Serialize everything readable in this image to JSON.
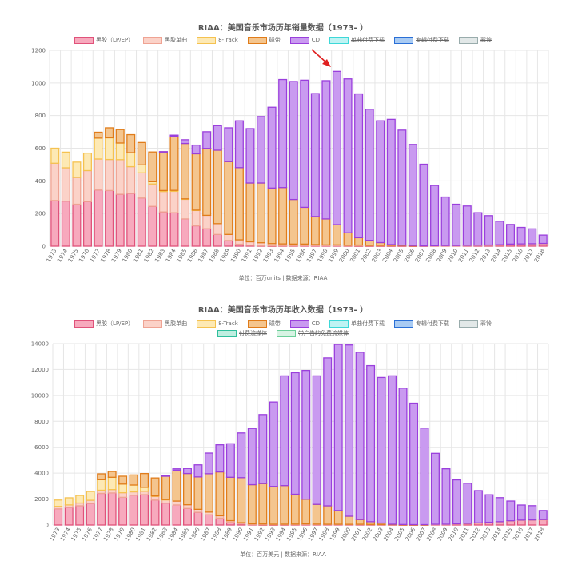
{
  "chart_data": [
    {
      "type": "bar",
      "stacked": true,
      "title": "RIAA：美国音乐市场历年销量数据（1973- ）",
      "subtitle": "单位：百万units | 数据来源：RIAA",
      "ylim": [
        0,
        1200
      ],
      "yticks": [
        0,
        200,
        400,
        600,
        800,
        1000,
        1200
      ],
      "categories": [
        "1973",
        "1974",
        "1975",
        "1976",
        "1977",
        "1978",
        "1979",
        "1980",
        "1981",
        "1982",
        "1983",
        "1984",
        "1985",
        "1986",
        "1987",
        "1988",
        "1989",
        "1990",
        "1991",
        "1992",
        "1993",
        "1994",
        "1995",
        "1996",
        "1997",
        "1998",
        "1999",
        "2000",
        "2001",
        "2002",
        "2003",
        "2004",
        "2005",
        "2006",
        "2007",
        "2008",
        "2009",
        "2010",
        "2011",
        "2012",
        "2013",
        "2014",
        "2015",
        "2016",
        "2017",
        "2018"
      ],
      "legend": [
        {
          "name": "黑胶（LP/EP）",
          "hidden": false
        },
        {
          "name": "黑胶单曲",
          "hidden": false
        },
        {
          "name": "8-Track",
          "hidden": false
        },
        {
          "name": "磁带",
          "hidden": false
        },
        {
          "name": "CD",
          "hidden": false
        },
        {
          "name": "单曲付费下载",
          "hidden": true
        },
        {
          "name": "专辑付费下载",
          "hidden": true
        },
        {
          "name": "彩铃",
          "hidden": true
        }
      ],
      "series": [
        {
          "name": "黑胶（LP/EP）",
          "values": [
            280,
            276,
            257,
            273,
            344,
            341,
            318,
            323,
            295,
            244,
            210,
            205,
            167,
            125,
            107,
            72,
            35,
            12,
            5,
            2,
            1,
            2,
            2,
            3,
            3,
            3,
            3,
            2,
            1,
            1,
            1,
            1,
            1,
            1,
            1,
            2,
            3,
            3,
            4,
            5,
            6,
            8,
            12,
            13,
            14,
            16
          ]
        },
        {
          "name": "黑胶单曲",
          "values": [
            228,
            204,
            164,
            190,
            190,
            190,
            212,
            164,
            154,
            137,
            125,
            131,
            120,
            94,
            82,
            66,
            37,
            27,
            22,
            19,
            15,
            12,
            11,
            10,
            7,
            5,
            5,
            4,
            6,
            4,
            4,
            4,
            3,
            2,
            1,
            1,
            1,
            1,
            1,
            1,
            1,
            1,
            1,
            1,
            1,
            1
          ]
        },
        {
          "name": "8-Track",
          "values": [
            92,
            96,
            94,
            107,
            128,
            133,
            102,
            86,
            49,
            14,
            6,
            6,
            3,
            2,
            0,
            0,
            0,
            0,
            0,
            0,
            0,
            0,
            0,
            0,
            0,
            0,
            0,
            0,
            0,
            0,
            0,
            0,
            0,
            0,
            0,
            0,
            0,
            0,
            0,
            0,
            0,
            0,
            0,
            0,
            0,
            0
          ]
        },
        {
          "name": "磁带",
          "values": [
            0,
            0,
            0,
            0,
            36,
            61,
            82,
            110,
            137,
            182,
            237,
            332,
            339,
            345,
            410,
            450,
            446,
            442,
            360,
            366,
            340,
            345,
            273,
            225,
            172,
            159,
            124,
            76,
            45,
            31,
            17,
            5,
            2,
            1,
            0,
            0,
            0,
            0,
            0,
            0,
            0,
            0,
            0,
            0,
            0,
            0
          ]
        },
        {
          "name": "CD",
          "values": [
            0,
            0,
            0,
            0,
            0,
            0,
            0,
            0,
            0,
            0,
            1,
            6,
            23,
            53,
            102,
            150,
            207,
            287,
            333,
            407,
            495,
            662,
            723,
            779,
            753,
            847,
            939,
            943,
            881,
            803,
            746,
            767,
            705,
            619,
            500,
            369,
            297,
            253,
            241,
            199,
            180,
            144,
            120,
            101,
            91,
            51
          ]
        }
      ],
      "annotation": "red arrow pointing to 1999 CD peak"
    },
    {
      "type": "bar",
      "stacked": true,
      "title": "RIAA：美国音乐市场历年收入数据（1973- ）",
      "subtitle": "单位：百万美元 | 数据来源：RIAA",
      "ylim": [
        0,
        14000
      ],
      "yticks": [
        0,
        2000,
        4000,
        6000,
        8000,
        10000,
        12000,
        14000
      ],
      "categories": [
        "1973",
        "1974",
        "1975",
        "1976",
        "1977",
        "1978",
        "1979",
        "1980",
        "1981",
        "1982",
        "1983",
        "1984",
        "1985",
        "1986",
        "1987",
        "1988",
        "1989",
        "1990",
        "1991",
        "1992",
        "1993",
        "1994",
        "1995",
        "1996",
        "1997",
        "1998",
        "1999",
        "2000",
        "2001",
        "2002",
        "2003",
        "2004",
        "2005",
        "2006",
        "2007",
        "2008",
        "2009",
        "2010",
        "2011",
        "2012",
        "2013",
        "2014",
        "2015",
        "2016",
        "2017",
        "2018"
      ],
      "legend": [
        {
          "name": "黑胶（LP/EP）",
          "hidden": false
        },
        {
          "name": "黑胶单曲",
          "hidden": false
        },
        {
          "name": "8-Track",
          "hidden": false
        },
        {
          "name": "磁带",
          "hidden": false
        },
        {
          "name": "CD",
          "hidden": false
        },
        {
          "name": "单曲付费下载",
          "hidden": true
        },
        {
          "name": "专辑付费下载",
          "hidden": true
        },
        {
          "name": "彩铃",
          "hidden": true
        },
        {
          "name": "付费流媒体",
          "hidden": true
        },
        {
          "name": "带广告的免费流媒体",
          "hidden": true
        }
      ],
      "series": [
        {
          "name": "黑胶（LP/EP）",
          "values": [
            1246,
            1356,
            1485,
            1663,
            2440,
            2474,
            2136,
            2290,
            2342,
            1925,
            1690,
            1548,
            1281,
            983,
            793,
            532,
            220,
            86,
            29,
            14,
            11,
            17,
            25,
            37,
            33,
            34,
            32,
            28,
            27,
            21,
            21,
            19,
            14,
            16,
            23,
            57,
            60,
            89,
            119,
            163,
            206,
            252,
            325,
            379,
            390,
            419
          ]
        },
        {
          "name": "黑胶单曲",
          "values": [
            190,
            194,
            211,
            245,
            245,
            260,
            354,
            269,
            256,
            283,
            269,
            298,
            281,
            228,
            203,
            180,
            116,
            94,
            63,
            66,
            51,
            47,
            46,
            48,
            36,
            26,
            28,
            26,
            31,
            24,
            22,
            19,
            13,
            11,
            4,
            3,
            3,
            2,
            4,
            3,
            4,
            3,
            3,
            2,
            2,
            2
          ]
        },
        {
          "name": "8-Track",
          "values": [
            489,
            549,
            583,
            678,
            811,
            948,
            669,
            526,
            309,
            36,
            4,
            0,
            0,
            0,
            0,
            0,
            0,
            0,
            0,
            0,
            0,
            0,
            0,
            0,
            0,
            0,
            0,
            0,
            0,
            0,
            0,
            0,
            0,
            0,
            0,
            0,
            0,
            0,
            0,
            0,
            0,
            0,
            0,
            0,
            0,
            0
          ]
        },
        {
          "name": "磁带",
          "values": [
            0,
            0,
            0,
            0,
            450,
            449,
            604,
            776,
            1062,
            1385,
            1810,
            2384,
            2411,
            2500,
            2960,
            3385,
            3346,
            3472,
            3019,
            3116,
            2916,
            2977,
            2304,
            1905,
            1523,
            1420,
            1062,
            626,
            363,
            210,
            108,
            24,
            13,
            4,
            3,
            0,
            0,
            0,
            0,
            0,
            0,
            0,
            0,
            0,
            0,
            0
          ]
        },
        {
          "name": "CD",
          "values": [
            0,
            0,
            0,
            0,
            0,
            0,
            0,
            0,
            0,
            0,
            17,
            103,
            390,
            930,
            1594,
            2090,
            2588,
            3452,
            4338,
            5326,
            6511,
            8465,
            9377,
            9935,
            9915,
            11416,
            12816,
            13215,
            12909,
            12044,
            11233,
            11447,
            10520,
            9373,
            7452,
            5471,
            4275,
            3389,
            3100,
            2486,
            2123,
            1855,
            1521,
            1160,
            1099,
            698
          ]
        }
      ]
    }
  ]
}
